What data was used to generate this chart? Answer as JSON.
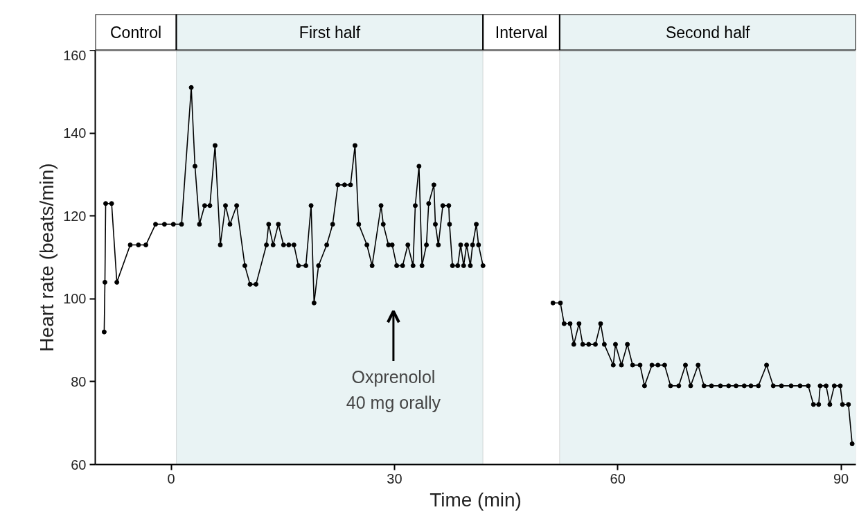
{
  "chart_data": {
    "type": "line",
    "xlabel": "Time (min)",
    "ylabel": "Heart rate (beats/min)",
    "xlim": [
      -10.2,
      92
    ],
    "ylim": [
      60,
      160
    ],
    "xticks": [
      0,
      30,
      60,
      90
    ],
    "yticks": [
      60,
      80,
      100,
      120,
      140,
      160
    ],
    "marker": "circle",
    "line_style": "solid",
    "x": [
      -9.0,
      -8.9,
      -8.8,
      -8.0,
      -7.3,
      -5.5,
      -4.4,
      -3.4,
      -2.1,
      -0.9,
      0.3,
      1.4,
      2.7,
      3.2,
      3.8,
      4.5,
      5.2,
      5.9,
      6.6,
      7.3,
      7.9,
      8.8,
      9.9,
      10.6,
      11.4,
      12.8,
      13.1,
      13.7,
      14.4,
      15.1,
      15.8,
      16.5,
      17.1,
      18.1,
      18.8,
      19.2,
      19.8,
      20.9,
      21.7,
      22.4,
      23.3,
      24.1,
      24.7,
      25.2,
      26.3,
      27.0,
      28.2,
      28.5,
      29.2,
      29.7,
      30.3,
      31.1,
      31.8,
      32.5,
      32.8,
      33.3,
      33.7,
      34.3,
      34.6,
      35.3,
      35.5,
      35.9,
      36.5,
      37.3,
      37.4,
      37.8,
      38.5,
      38.9,
      39.3,
      39.7,
      40.2,
      40.5,
      41.0,
      41.3,
      41.9,
      46.0,
      51.3,
      52.3,
      52.8,
      53.6,
      54.1,
      54.8,
      55.3,
      56.1,
      57.0,
      57.7,
      58.2,
      59.4,
      59.7,
      60.5,
      61.3,
      62.0,
      63.0,
      63.6,
      64.6,
      65.4,
      66.3,
      67.1,
      68.2,
      69.1,
      69.8,
      70.8,
      71.6,
      72.6,
      73.8,
      74.9,
      75.9,
      77.0,
      77.9,
      78.9,
      80.0,
      80.9,
      82.0,
      83.3,
      84.5,
      85.6,
      86.3,
      87.0,
      87.2,
      88.0,
      88.5,
      89.1,
      89.9,
      90.2,
      91.0,
      91.5
    ],
    "series": [
      {
        "color": "#000000",
        "values": [
          92,
          104,
          123,
          123,
          104,
          113,
          113,
          113,
          118,
          118,
          118,
          118,
          151,
          132,
          118,
          122.5,
          122.5,
          137,
          113,
          122.5,
          118,
          122.5,
          108,
          103.5,
          103.5,
          113,
          118,
          113,
          118,
          113,
          113,
          113,
          108,
          108,
          122.5,
          99,
          108,
          113,
          118,
          127.5,
          127.5,
          127.5,
          137,
          118,
          113,
          108,
          122.5,
          118,
          113,
          113,
          108,
          108,
          113,
          108,
          122.5,
          132,
          108,
          113,
          123,
          127.5,
          118,
          113,
          122.5,
          122.5,
          118,
          108,
          108,
          113,
          108,
          113,
          108,
          113,
          118,
          113,
          108,
          null,
          99,
          99,
          94,
          94,
          89,
          94,
          89,
          89,
          89,
          94,
          89,
          84,
          89,
          84,
          89,
          84,
          84,
          79,
          84,
          84,
          84,
          79,
          79,
          84,
          79,
          84,
          79,
          79,
          79,
          79,
          79,
          79,
          79,
          79,
          84,
          79,
          79,
          79,
          79,
          79,
          74.5,
          74.5,
          79,
          79,
          74.5,
          79,
          79,
          74.5,
          74.5,
          65
        ]
      }
    ],
    "bands": [
      {
        "axis": "x",
        "from": -10.2,
        "to": 0.7,
        "label": "Control",
        "color": "#ffffff"
      },
      {
        "axis": "x",
        "from": 0.7,
        "to": 41.9,
        "label": "First half",
        "color": "#e9f3f4"
      },
      {
        "axis": "x",
        "from": 41.9,
        "to": 52.2,
        "label": "Interval",
        "color": "#ffffff"
      },
      {
        "axis": "x",
        "from": 52.2,
        "to": 92,
        "label": "Second half",
        "color": "#e9f3f4"
      }
    ],
    "annotations": [
      "Oxprenolol\n40 mg orally"
    ]
  }
}
